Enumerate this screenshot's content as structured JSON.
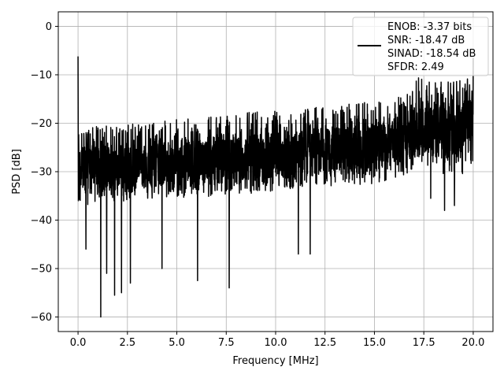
{
  "chart_data": {
    "type": "line",
    "title": "",
    "xlabel": "Frequency [MHz]",
    "ylabel": "PSD [dB]",
    "xlim": [
      -1.0,
      21.0
    ],
    "ylim": [
      -63.0,
      3.0
    ],
    "xticks": [
      0.0,
      2.5,
      5.0,
      7.5,
      10.0,
      12.5,
      15.0,
      17.5,
      20.0
    ],
    "xtick_labels": [
      "0.0",
      "2.5",
      "5.0",
      "7.5",
      "10.0",
      "12.5",
      "15.0",
      "17.5",
      "20.0"
    ],
    "yticks": [
      0,
      -10,
      -20,
      -30,
      -40,
      -50,
      -60
    ],
    "ytick_labels": [
      "0",
      "−10",
      "−20",
      "−30",
      "−40",
      "−50",
      "−60"
    ],
    "grid": true,
    "legend_position": "top-right",
    "legend_lines": [
      "ENOB: -3.37 bits",
      "SNR: -18.47 dB",
      "SINAD: -18.54 dB",
      "SFDR: 2.49"
    ],
    "line_color": "#000000",
    "series": [
      {
        "envelope": {
          "x": [
            0.0,
            2.5,
            5.0,
            7.5,
            10.0,
            12.5,
            15.0,
            16.0,
            16.5,
            17.0,
            17.5,
            18.0,
            18.5,
            19.0,
            19.5,
            20.0
          ],
          "upper": [
            -21,
            -20,
            -19,
            -18,
            -17.5,
            -16.5,
            -15.5,
            -15,
            -14,
            -12,
            -9,
            -10,
            -11,
            -11,
            -10,
            -12
          ],
          "mid": [
            -29,
            -29,
            -28,
            -27.5,
            -27,
            -26,
            -25,
            -24,
            -23,
            -22,
            -20,
            -21,
            -21,
            -21,
            -20,
            -19
          ],
          "lower": [
            -37,
            -36,
            -35.5,
            -35,
            -34,
            -33,
            -32.5,
            -32,
            -31,
            -30,
            -28,
            -30,
            -31,
            -32,
            -31,
            -28
          ]
        },
        "spikes": [
          {
            "x": 0.0,
            "y": -6.2
          },
          {
            "x": 0.02,
            "y": -36
          },
          {
            "x": 0.4,
            "y": -46
          },
          {
            "x": 1.15,
            "y": -60
          },
          {
            "x": 1.45,
            "y": -51
          },
          {
            "x": 1.85,
            "y": -55.5
          },
          {
            "x": 2.2,
            "y": -55
          },
          {
            "x": 2.65,
            "y": -53
          },
          {
            "x": 4.25,
            "y": -50
          },
          {
            "x": 6.05,
            "y": -52.5
          },
          {
            "x": 7.65,
            "y": -54
          },
          {
            "x": 11.15,
            "y": -47
          },
          {
            "x": 11.75,
            "y": -47
          },
          {
            "x": 17.85,
            "y": -35.5
          },
          {
            "x": 18.55,
            "y": -38
          },
          {
            "x": 19.05,
            "y": -37
          },
          {
            "x": 20.0,
            "y": -6.5
          }
        ]
      }
    ]
  }
}
